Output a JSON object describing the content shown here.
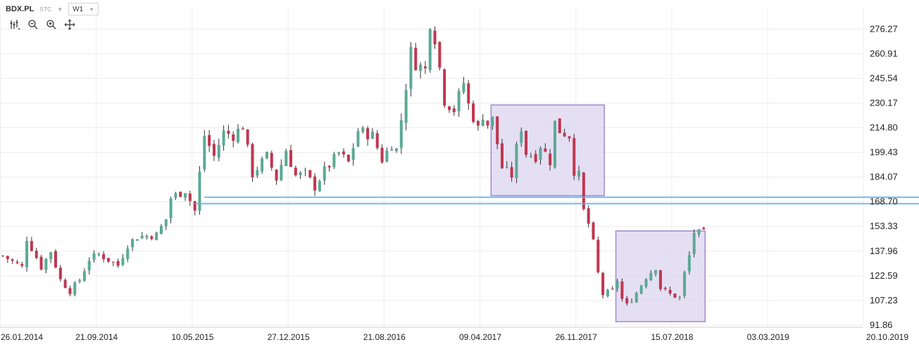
{
  "header": {
    "symbol": "BDX.PL",
    "market_tag": "STC",
    "timeframe": "W1"
  },
  "toolbar": [
    {
      "name": "chart-type-icon"
    },
    {
      "name": "zoom-out-icon"
    },
    {
      "name": "zoom-in-icon"
    },
    {
      "name": "crosshair-icon"
    }
  ],
  "chart_data": {
    "type": "candlestick",
    "timeframe": "W1",
    "y_axis": {
      "ticks": [
        276.27,
        260.91,
        245.54,
        230.17,
        214.8,
        199.43,
        184.07,
        168.7,
        153.33,
        137.96,
        122.59,
        107.23,
        91.86
      ],
      "ylim": [
        90.5,
        290
      ]
    },
    "x_axis": {
      "ticks": [
        "26.01.2014",
        "21.09.2014",
        "10.05.2015",
        "27.12.2015",
        "21.08.2016",
        "09.04.2017",
        "26.11.2017",
        "15.07.2018",
        "03.03.2019",
        "20.10.2019"
      ]
    },
    "colors": {
      "up": "#5aaa95",
      "down": "#c1364f",
      "wick": "#333333",
      "hline": "#5bb4f5",
      "box_fill": "#dcd4f0",
      "box_stroke": "#9d8ad1",
      "grid": "#ececec"
    },
    "horizontal_lines": [
      {
        "y": 171.5,
        "x_from": 42,
        "x_to": 300
      },
      {
        "y": 167.5,
        "x_from": 40,
        "x_to": 300
      }
    ],
    "boxes": [
      {
        "x_from": 102,
        "x_to": 125,
        "y_low": 172.5,
        "y_high": 229.0
      },
      {
        "x_from": 128,
        "x_to": 146,
        "y_low": 94.0,
        "y_high": 150.5
      }
    ],
    "close_path": [
      [
        0,
        135
      ],
      [
        4,
        128
      ],
      [
        5,
        146
      ],
      [
        8,
        128
      ],
      [
        10,
        138
      ],
      [
        12,
        120
      ],
      [
        14,
        113
      ],
      [
        16,
        120
      ],
      [
        18,
        133
      ],
      [
        20,
        136
      ],
      [
        24,
        129
      ],
      [
        26,
        142
      ],
      [
        28,
        147
      ],
      [
        32,
        148
      ],
      [
        34,
        158
      ],
      [
        35,
        171
      ],
      [
        38,
        176
      ],
      [
        40,
        163
      ],
      [
        42,
        210
      ],
      [
        44,
        197
      ],
      [
        46,
        212
      ],
      [
        48,
        210
      ],
      [
        50,
        216
      ],
      [
        52,
        186
      ],
      [
        55,
        197
      ],
      [
        57,
        183
      ],
      [
        59,
        201
      ],
      [
        61,
        185
      ],
      [
        63,
        186
      ],
      [
        65,
        178
      ],
      [
        67,
        188
      ],
      [
        70,
        199
      ],
      [
        72,
        193
      ],
      [
        74,
        213
      ],
      [
        77,
        210
      ],
      [
        79,
        195
      ],
      [
        81,
        205
      ],
      [
        82,
        201
      ],
      [
        83,
        220
      ],
      [
        85,
        262
      ],
      [
        86,
        255
      ],
      [
        88,
        251
      ],
      [
        89,
        281
      ],
      [
        90,
        271
      ],
      [
        91,
        252
      ],
      [
        92,
        232
      ],
      [
        94,
        226
      ],
      [
        96,
        243
      ],
      [
        97,
        229
      ],
      [
        99,
        214
      ],
      [
        100,
        223
      ],
      [
        101,
        217
      ],
      [
        102,
        220
      ],
      [
        104,
        190
      ],
      [
        106,
        185
      ],
      [
        107,
        202
      ],
      [
        108,
        215
      ],
      [
        109,
        199
      ],
      [
        111,
        197
      ],
      [
        112,
        204
      ],
      [
        114,
        194
      ],
      [
        115,
        218
      ],
      [
        116,
        213
      ],
      [
        118,
        210
      ],
      [
        119,
        188
      ],
      [
        120,
        185
      ],
      [
        121,
        163
      ],
      [
        122,
        155
      ],
      [
        123,
        143
      ],
      [
        124,
        124
      ],
      [
        125,
        111
      ],
      [
        127,
        113
      ],
      [
        128,
        120
      ],
      [
        129,
        108
      ],
      [
        130,
        104
      ],
      [
        132,
        112
      ],
      [
        134,
        122
      ],
      [
        136,
        128
      ],
      [
        137,
        115
      ],
      [
        139,
        111
      ],
      [
        141,
        109
      ],
      [
        142,
        124
      ],
      [
        143,
        135
      ],
      [
        144,
        150
      ],
      [
        145,
        149
      ]
    ]
  }
}
